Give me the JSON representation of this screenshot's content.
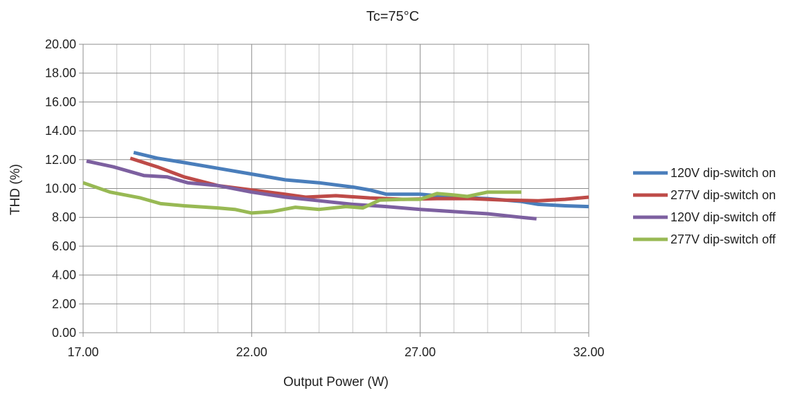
{
  "chart_data": {
    "type": "line",
    "title": "Tc=75°C",
    "xlabel": "Output Power (W)",
    "ylabel": "THD (%)",
    "xlim": [
      17,
      32
    ],
    "ylim": [
      0,
      20
    ],
    "x_ticks": [
      "17.00",
      "22.00",
      "27.00",
      "32.00"
    ],
    "y_ticks": [
      "0.00",
      "2.00",
      "4.00",
      "6.00",
      "8.00",
      "10.00",
      "12.00",
      "14.00",
      "16.00",
      "18.00",
      "20.00"
    ],
    "grid": true,
    "legend_position": "right",
    "series": [
      {
        "name": "120V dip-switch on",
        "color": "#4a7ebb",
        "points": [
          [
            18.5,
            12.5
          ],
          [
            19.2,
            12.1
          ],
          [
            20.0,
            11.8
          ],
          [
            21.0,
            11.4
          ],
          [
            22.0,
            11.0
          ],
          [
            23.0,
            10.6
          ],
          [
            24.0,
            10.4
          ],
          [
            25.0,
            10.1
          ],
          [
            25.5,
            9.9
          ],
          [
            26.0,
            9.6
          ],
          [
            27.0,
            9.6
          ],
          [
            28.0,
            9.4
          ],
          [
            29.0,
            9.3
          ],
          [
            30.0,
            9.1
          ],
          [
            30.5,
            8.9
          ],
          [
            31.3,
            8.8
          ],
          [
            32.0,
            8.75
          ]
        ]
      },
      {
        "name": "277V dip-switch on",
        "color": "#be4b48",
        "points": [
          [
            18.4,
            12.1
          ],
          [
            19.2,
            11.5
          ],
          [
            20.0,
            10.8
          ],
          [
            21.0,
            10.2
          ],
          [
            22.0,
            9.9
          ],
          [
            23.0,
            9.6
          ],
          [
            23.6,
            9.4
          ],
          [
            24.5,
            9.5
          ],
          [
            25.5,
            9.35
          ],
          [
            26.5,
            9.25
          ],
          [
            27.5,
            9.3
          ],
          [
            28.5,
            9.3
          ],
          [
            29.5,
            9.2
          ],
          [
            30.5,
            9.15
          ],
          [
            31.3,
            9.25
          ],
          [
            32.0,
            9.4
          ]
        ]
      },
      {
        "name": "120V dip-switch off",
        "color": "#7d60a0",
        "points": [
          [
            17.1,
            11.9
          ],
          [
            17.9,
            11.5
          ],
          [
            18.8,
            10.9
          ],
          [
            19.5,
            10.8
          ],
          [
            20.1,
            10.4
          ],
          [
            21.0,
            10.2
          ],
          [
            22.0,
            9.75
          ],
          [
            23.0,
            9.4
          ],
          [
            24.0,
            9.15
          ],
          [
            25.0,
            8.9
          ],
          [
            26.0,
            8.75
          ],
          [
            27.0,
            8.55
          ],
          [
            28.0,
            8.4
          ],
          [
            29.0,
            8.25
          ],
          [
            30.0,
            8.0
          ],
          [
            30.45,
            7.9
          ]
        ]
      },
      {
        "name": "277V dip-switch off",
        "color": "#98b954",
        "points": [
          [
            17.0,
            10.4
          ],
          [
            17.8,
            9.75
          ],
          [
            18.7,
            9.35
          ],
          [
            19.3,
            8.95
          ],
          [
            20.0,
            8.8
          ],
          [
            21.0,
            8.65
          ],
          [
            21.5,
            8.55
          ],
          [
            22.0,
            8.3
          ],
          [
            22.6,
            8.4
          ],
          [
            23.3,
            8.7
          ],
          [
            24.0,
            8.55
          ],
          [
            24.8,
            8.75
          ],
          [
            25.3,
            8.65
          ],
          [
            25.8,
            9.2
          ],
          [
            26.5,
            9.25
          ],
          [
            27.0,
            9.25
          ],
          [
            27.5,
            9.65
          ],
          [
            28.0,
            9.55
          ],
          [
            28.4,
            9.45
          ],
          [
            29.0,
            9.75
          ],
          [
            30.0,
            9.75
          ]
        ]
      }
    ]
  }
}
